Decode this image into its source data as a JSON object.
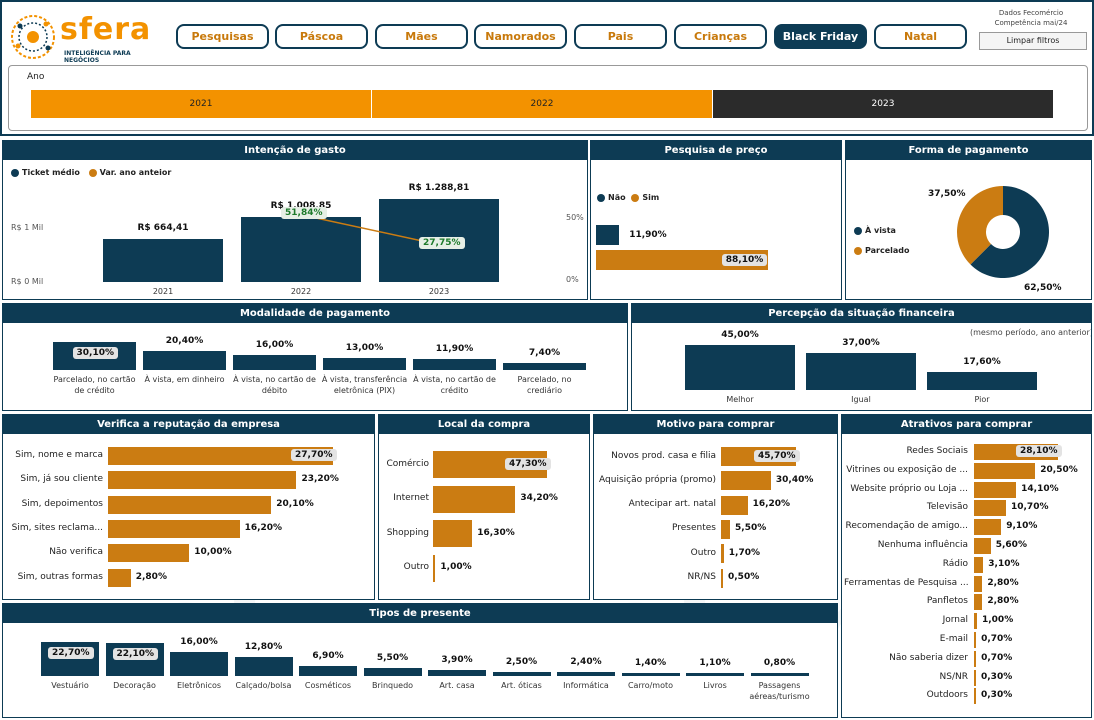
{
  "header": {
    "brand": "sfera",
    "brand_sub": "INTELIGÊNCIA PARA NEGÓCIOS",
    "source_line1": "Dados Fecomércio",
    "source_line2": "Competência mai/24",
    "clear_filters": "Limpar filtros",
    "nav": [
      "Pesquisas",
      "Páscoa",
      "Mães",
      "Namorados",
      "Pais",
      "Crianças",
      "Black Friday",
      "Natal"
    ]
  },
  "year_filter": {
    "label": "Ano",
    "options": [
      "2021",
      "2022",
      "2023"
    ],
    "selected": "2023"
  },
  "intencao": {
    "title": "Intenção de gasto",
    "legend": [
      "Ticket médio",
      "Var. ano anteior"
    ],
    "y_labels": [
      "R$ 1 Mil",
      "R$ 0 Mil"
    ],
    "y2_labels": [
      "50%",
      "0%"
    ],
    "years": [
      "2021",
      "2022",
      "2023"
    ],
    "values": [
      664.41,
      1008.85,
      1288.81
    ],
    "value_labels": [
      "R$ 664,41",
      "R$ 1.008,85",
      "R$ 1.288,81"
    ],
    "var_values": [
      51.84,
      27.75
    ],
    "var_labels": [
      "51,84%",
      "27,75%"
    ]
  },
  "preco": {
    "title": "Pesquisa de preço",
    "legend": [
      "Não",
      "Sim"
    ],
    "values": [
      11.9,
      88.1
    ],
    "labels": [
      "11,90%",
      "88,10%"
    ]
  },
  "forma": {
    "title": "Forma de pagamento",
    "legend": [
      "À vista",
      "Parcelado"
    ],
    "values": [
      62.5,
      37.5
    ],
    "labels": [
      "62,50%",
      "37,50%"
    ]
  },
  "modalidade": {
    "title": "Modalidade de pagamento",
    "categories": [
      "Parcelado, no cartão de crédito",
      "À vista, em dinheiro",
      "À vista, no cartão de débito",
      "À vista, transferência eletrônica (PIX)",
      "À vista, no cartão de crédito",
      "Parcelado, no crediário"
    ],
    "values": [
      30.1,
      20.4,
      16.0,
      13.0,
      11.9,
      7.4
    ],
    "labels": [
      "30,10%",
      "20,40%",
      "16,00%",
      "13,00%",
      "11,90%",
      "7,40%"
    ]
  },
  "percepcao": {
    "title": "Percepção da situação financeira",
    "subtitle": "(mesmo período, ano anterior)",
    "categories": [
      "Melhor",
      "Igual",
      "Pior"
    ],
    "values": [
      45.0,
      37.0,
      17.6
    ],
    "labels": [
      "45,00%",
      "37,00%",
      "17,60%"
    ]
  },
  "reputacao": {
    "title": "Verifica a reputação da empresa",
    "categories": [
      "Sim, nome e marca",
      "Sim, já sou cliente",
      "Sim, depoimentos",
      "Sim, sites reclama...",
      "Não verifica",
      "Sim, outras formas"
    ],
    "values": [
      27.7,
      23.2,
      20.1,
      16.2,
      10.0,
      2.8
    ],
    "labels": [
      "27,70%",
      "23,20%",
      "20,10%",
      "16,20%",
      "10,00%",
      "2,80%"
    ]
  },
  "local": {
    "title": "Local da compra",
    "categories": [
      "Comércio",
      "Internet",
      "Shopping",
      "Outro"
    ],
    "values": [
      47.3,
      34.2,
      16.3,
      1.0
    ],
    "labels": [
      "47,30%",
      "34,20%",
      "16,30%",
      "1,00%"
    ]
  },
  "motivo": {
    "title": "Motivo para comprar",
    "categories": [
      "Novos prod. casa e filia",
      "Aquisição própria (promo)",
      "Antecipar art. natal",
      "Presentes",
      "Outro",
      "NR/NS"
    ],
    "values": [
      45.7,
      30.4,
      16.2,
      5.5,
      1.7,
      0.5
    ],
    "labels": [
      "45,70%",
      "30,40%",
      "16,20%",
      "5,50%",
      "1,70%",
      "0,50%"
    ]
  },
  "atrativos": {
    "title": "Atrativos para comprar",
    "categories": [
      "Redes Sociais",
      "Vitrines ou exposição de ...",
      "Website próprio ou Loja ...",
      "Televisão",
      "Recomendação de amigo...",
      "Nenhuma influência",
      "Rádio",
      "Ferramentas de Pesquisa ...",
      "Panfletos",
      "Jornal",
      "E-mail",
      "Não saberia dizer",
      "NS/NR",
      "Outdoors"
    ],
    "values": [
      28.1,
      20.5,
      14.1,
      10.7,
      9.1,
      5.6,
      3.1,
      2.8,
      2.8,
      1.0,
      0.7,
      0.7,
      0.3,
      0.3
    ],
    "labels": [
      "28,10%",
      "20,50%",
      "14,10%",
      "10,70%",
      "9,10%",
      "5,60%",
      "3,10%",
      "2,80%",
      "2,80%",
      "1,00%",
      "0,70%",
      "0,70%",
      "0,30%",
      "0,30%"
    ]
  },
  "presente": {
    "title": "Tipos de presente",
    "categories": [
      "Vestuário",
      "Decoração",
      "Eletrônicos",
      "Calçado/bolsa",
      "Cosméticos",
      "Brinquedo",
      "Art. casa",
      "Art. óticas",
      "Informática",
      "Carro/moto",
      "Livros",
      "Passagens aéreas/turismo"
    ],
    "values": [
      22.7,
      22.1,
      16.0,
      12.8,
      6.9,
      5.5,
      3.9,
      2.5,
      2.4,
      1.4,
      1.1,
      0.8
    ],
    "labels": [
      "22,70%",
      "22,10%",
      "16,00%",
      "12,80%",
      "6,90%",
      "5,50%",
      "3,90%",
      "2,50%",
      "2,40%",
      "1,40%",
      "1,10%",
      "0,80%"
    ]
  },
  "colors": {
    "navy": "#0d3b54",
    "orange": "#cb7c12",
    "bright_orange": "#f39200",
    "dark": "#2b2b2b"
  }
}
